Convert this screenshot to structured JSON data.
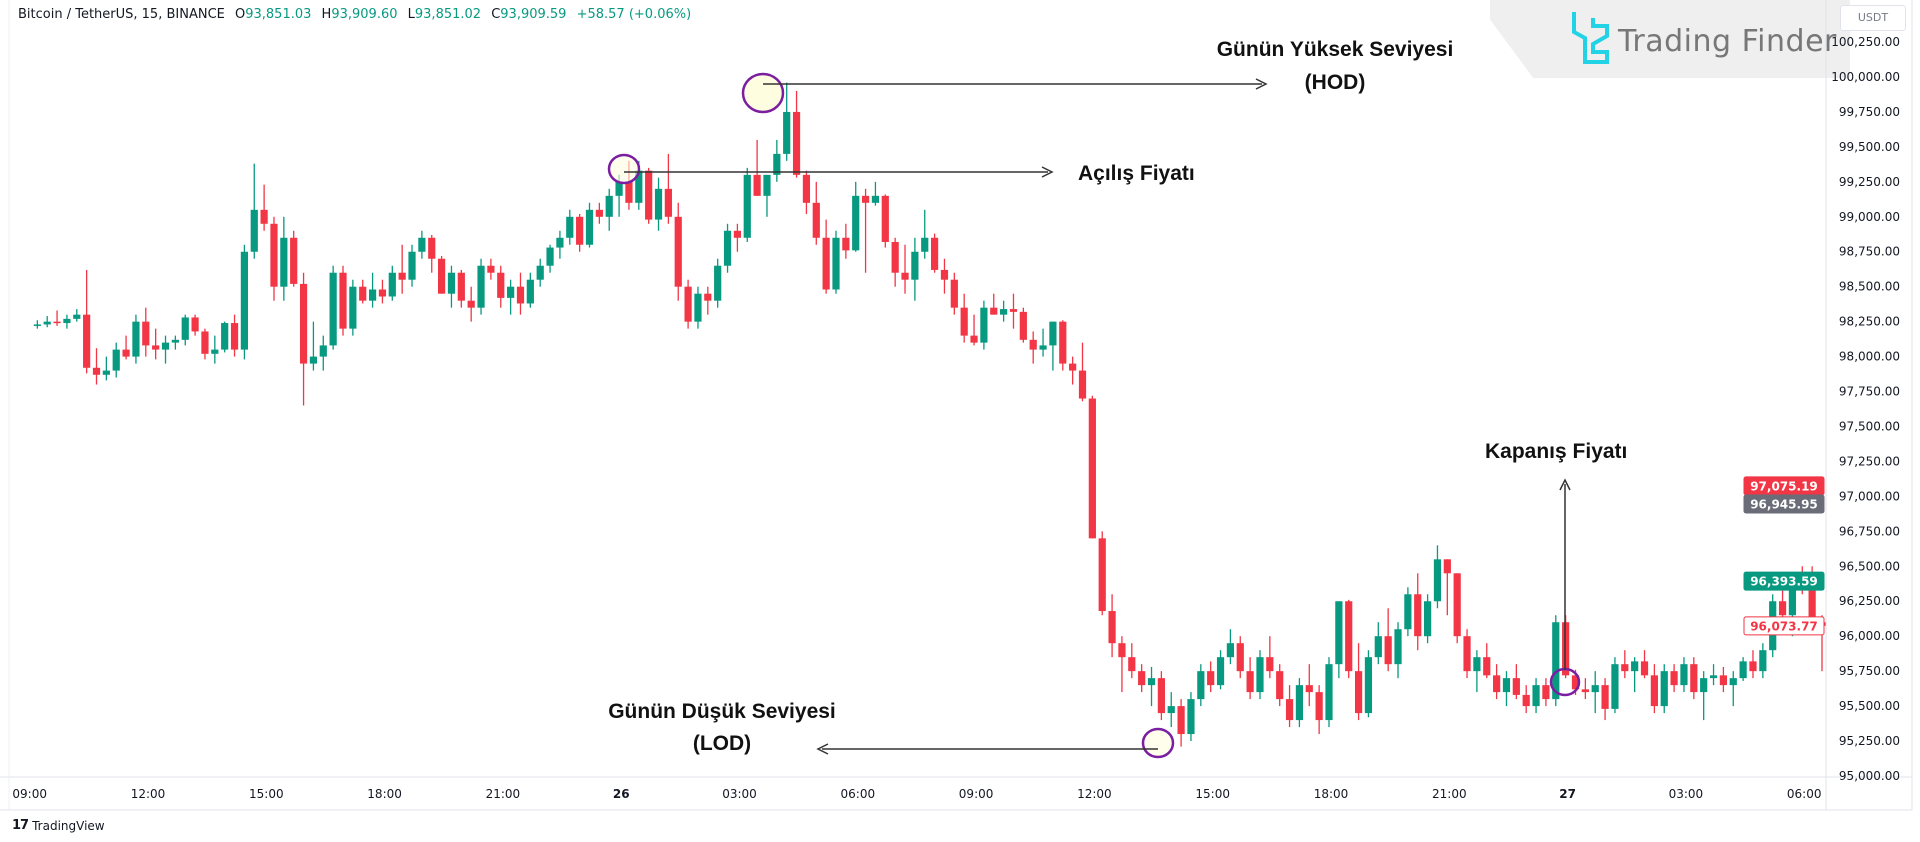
{
  "header": {
    "symbol": "Bitcoin / TetherUS, 15, BINANCE",
    "open_label": "O",
    "open_value": "93,851.03",
    "high_label": "H",
    "high_value": "93,909.60",
    "low_label": "L",
    "low_value": "93,851.02",
    "close_label": "C",
    "close_value": "93,909.59",
    "change": "+58.57 (+0.06%)"
  },
  "watermark": {
    "brand": "Trading Finder",
    "icon": "trading-finder-logo-icon"
  },
  "currency_button": "USDT",
  "footer": {
    "brand": "TradingView",
    "icon": "tradingview-logo-icon"
  },
  "annotations": {
    "hod_line1": "Günün Yüksek Seviyesi",
    "hod_line2": "(HOD)",
    "open_label": "Açılış Fiyatı",
    "close_label": "Kapanış Fiyatı",
    "lod_line1": "Günün Düşük Seviyesi",
    "lod_line2": "(LOD)"
  },
  "colors": {
    "up": "#089981",
    "down": "#f23645",
    "marker": "#7b1fa2",
    "marker_fill": "#fffde0",
    "watermark_icon": "#22d3e6"
  },
  "price_tags": [
    {
      "value": "97,075.19",
      "bg": "#f23645",
      "fg": "#ffffff"
    },
    {
      "value": "96,945.95",
      "bg": "#6a6d78",
      "fg": "#ffffff"
    },
    {
      "value": "96,393.59",
      "bg": "#089981",
      "fg": "#ffffff"
    },
    {
      "value": "96,073.77",
      "bg": "#ffffff",
      "fg": "#f23645"
    }
  ],
  "chart_data": {
    "type": "candlestick",
    "ylim": [
      95000,
      100250
    ],
    "y_ticks": [
      "100,250.00",
      "100,000.00",
      "99,750.00",
      "99,500.00",
      "99,250.00",
      "99,000.00",
      "98,750.00",
      "98,500.00",
      "98,250.00",
      "98,000.00",
      "97,750.00",
      "97,500.00",
      "97,250.00",
      "97,000.00",
      "96,750.00",
      "96,500.00",
      "96,250.00",
      "96,000.00",
      "95,750.00",
      "95,500.00",
      "95,250.00",
      "95,000.00"
    ],
    "x_ticks": [
      "09:00",
      "12:00",
      "15:00",
      "18:00",
      "21:00",
      "26",
      "03:00",
      "06:00",
      "09:00",
      "12:00",
      "15:00",
      "18:00",
      "21:00",
      "27",
      "03:00",
      "06:00"
    ],
    "candles_ohlc": [
      [
        98220,
        98260,
        98200,
        98230
      ],
      [
        98230,
        98290,
        98210,
        98250
      ],
      [
        98250,
        98330,
        98220,
        98240
      ],
      [
        98240,
        98300,
        98200,
        98270
      ],
      [
        98270,
        98340,
        98250,
        98300
      ],
      [
        98300,
        98620,
        97880,
        97920
      ],
      [
        97920,
        98060,
        97800,
        97870
      ],
      [
        97870,
        98000,
        97830,
        97900
      ],
      [
        97900,
        98100,
        97850,
        98050
      ],
      [
        98050,
        98150,
        97980,
        98000
      ],
      [
        98000,
        98300,
        97950,
        98250
      ],
      [
        98250,
        98350,
        98000,
        98080
      ],
      [
        98080,
        98200,
        97980,
        98050
      ],
      [
        98050,
        98150,
        97950,
        98100
      ],
      [
        98100,
        98150,
        98050,
        98120
      ],
      [
        98120,
        98300,
        98080,
        98280
      ],
      [
        98280,
        98300,
        98150,
        98180
      ],
      [
        98180,
        98200,
        97980,
        98020
      ],
      [
        98020,
        98150,
        97950,
        98050
      ],
      [
        98050,
        98250,
        98030,
        98240
      ],
      [
        98240,
        98300,
        98000,
        98050
      ],
      [
        98050,
        98800,
        97980,
        98750
      ],
      [
        98750,
        99380,
        98700,
        99050
      ],
      [
        99050,
        99230,
        98900,
        98950
      ],
      [
        98950,
        99000,
        98400,
        98500
      ],
      [
        98500,
        99000,
        98400,
        98850
      ],
      [
        98850,
        98900,
        98500,
        98520
      ],
      [
        98520,
        98600,
        97650,
        97950
      ],
      [
        97950,
        98250,
        97900,
        98000
      ],
      [
        98000,
        98150,
        97900,
        98080
      ],
      [
        98080,
        98650,
        98050,
        98600
      ],
      [
        98600,
        98650,
        98150,
        98200
      ],
      [
        98200,
        98550,
        98150,
        98500
      ],
      [
        98500,
        98550,
        98380,
        98400
      ],
      [
        98400,
        98600,
        98350,
        98480
      ],
      [
        98480,
        98550,
        98380,
        98430
      ],
      [
        98430,
        98650,
        98400,
        98600
      ],
      [
        98600,
        98800,
        98450,
        98550
      ],
      [
        98550,
        98800,
        98500,
        98750
      ],
      [
        98750,
        98900,
        98700,
        98850
      ],
      [
        98850,
        98870,
        98600,
        98700
      ],
      [
        98700,
        98720,
        98450,
        98450
      ],
      [
        98450,
        98650,
        98350,
        98600
      ],
      [
        98600,
        98620,
        98350,
        98400
      ],
      [
        98400,
        98500,
        98250,
        98350
      ],
      [
        98350,
        98700,
        98300,
        98650
      ],
      [
        98650,
        98700,
        98550,
        98600
      ],
      [
        98600,
        98650,
        98350,
        98420
      ],
      [
        98420,
        98550,
        98300,
        98500
      ],
      [
        98500,
        98600,
        98300,
        98380
      ],
      [
        98380,
        98600,
        98350,
        98550
      ],
      [
        98550,
        98700,
        98500,
        98650
      ],
      [
        98650,
        98800,
        98600,
        98780
      ],
      [
        98780,
        98900,
        98700,
        98850
      ],
      [
        98850,
        99050,
        98800,
        99000
      ],
      [
        99000,
        99020,
        98750,
        98800
      ],
      [
        98800,
        99100,
        98780,
        99050
      ],
      [
        99050,
        99100,
        98950,
        99000
      ],
      [
        99000,
        99200,
        98900,
        99150
      ],
      [
        99150,
        99300,
        99000,
        99250
      ],
      [
        99250,
        99400,
        99050,
        99100
      ],
      [
        99100,
        99400,
        99050,
        99330
      ],
      [
        99330,
        99350,
        98950,
        98980
      ],
      [
        98980,
        99280,
        98900,
        99200
      ],
      [
        99200,
        99450,
        98950,
        99000
      ],
      [
        99000,
        99100,
        98400,
        98500
      ],
      [
        98500,
        98550,
        98200,
        98250
      ],
      [
        98250,
        98500,
        98200,
        98450
      ],
      [
        98450,
        98500,
        98300,
        98400
      ],
      [
        98400,
        98700,
        98350,
        98650
      ],
      [
        98650,
        98950,
        98600,
        98900
      ],
      [
        98900,
        98950,
        98750,
        98850
      ],
      [
        98850,
        99350,
        98820,
        99300
      ],
      [
        99300,
        99550,
        99150,
        99150
      ],
      [
        99150,
        99300,
        99000,
        99300
      ],
      [
        99300,
        99550,
        99250,
        99450
      ],
      [
        99450,
        99960,
        99400,
        99750
      ],
      [
        99750,
        99900,
        99280,
        99300
      ],
      [
        99300,
        99330,
        99020,
        99100
      ],
      [
        99100,
        99250,
        98800,
        98850
      ],
      [
        98850,
        98980,
        98450,
        98480
      ],
      [
        98480,
        98900,
        98450,
        98850
      ],
      [
        98850,
        98950,
        98700,
        98760
      ],
      [
        98760,
        99250,
        98750,
        99150
      ],
      [
        99150,
        99200,
        98600,
        99100
      ],
      [
        99100,
        99250,
        99080,
        99150
      ],
      [
        99150,
        99160,
        98780,
        98820
      ],
      [
        98820,
        98850,
        98500,
        98600
      ],
      [
        98600,
        98800,
        98450,
        98550
      ],
      [
        98550,
        98850,
        98400,
        98750
      ],
      [
        98750,
        99050,
        98700,
        98850
      ],
      [
        98850,
        98880,
        98600,
        98620
      ],
      [
        98620,
        98700,
        98450,
        98550
      ],
      [
        98550,
        98600,
        98300,
        98350
      ],
      [
        98350,
        98450,
        98100,
        98150
      ],
      [
        98150,
        98300,
        98080,
        98100
      ],
      [
        98100,
        98400,
        98050,
        98350
      ],
      [
        98350,
        98450,
        98300,
        98300
      ],
      [
        98300,
        98400,
        98250,
        98340
      ],
      [
        98340,
        98450,
        98200,
        98320
      ],
      [
        98320,
        98350,
        98100,
        98120
      ],
      [
        98120,
        98180,
        97950,
        98050
      ],
      [
        98050,
        98200,
        98000,
        98080
      ],
      [
        98080,
        98250,
        97900,
        98250
      ],
      [
        98250,
        98260,
        97900,
        97950
      ],
      [
        97950,
        98000,
        97800,
        97900
      ],
      [
        97900,
        98100,
        97680,
        97700
      ],
      [
        97700,
        97720,
        96700,
        96700
      ],
      [
        96700,
        96750,
        96150,
        96180
      ],
      [
        96180,
        96300,
        95850,
        95950
      ],
      [
        95950,
        96000,
        95600,
        95850
      ],
      [
        95850,
        95950,
        95700,
        95750
      ],
      [
        95750,
        95800,
        95600,
        95650
      ],
      [
        95650,
        95780,
        95500,
        95700
      ],
      [
        95700,
        95750,
        95400,
        95450
      ],
      [
        95450,
        95600,
        95350,
        95500
      ],
      [
        95500,
        95550,
        95210,
        95300
      ],
      [
        95300,
        95600,
        95250,
        95550
      ],
      [
        95550,
        95800,
        95500,
        95750
      ],
      [
        95750,
        95820,
        95600,
        95650
      ],
      [
        95650,
        95900,
        95620,
        95850
      ],
      [
        95850,
        96050,
        95800,
        95950
      ],
      [
        95950,
        96000,
        95700,
        95750
      ],
      [
        95750,
        95850,
        95550,
        95600
      ],
      [
        95600,
        95900,
        95550,
        95850
      ],
      [
        95850,
        96000,
        95700,
        95750
      ],
      [
        95750,
        95800,
        95500,
        95550
      ],
      [
        95550,
        95650,
        95350,
        95400
      ],
      [
        95400,
        95700,
        95350,
        95650
      ],
      [
        95650,
        95800,
        95500,
        95600
      ],
      [
        95600,
        95650,
        95300,
        95400
      ],
      [
        95400,
        95850,
        95350,
        95800
      ],
      [
        95800,
        96250,
        95700,
        96250
      ],
      [
        96250,
        96260,
        95700,
        95750
      ],
      [
        95750,
        95950,
        95400,
        95450
      ],
      [
        95450,
        95900,
        95420,
        95850
      ],
      [
        95850,
        96100,
        95800,
        96000
      ],
      [
        96000,
        96200,
        95750,
        95800
      ],
      [
        95800,
        96100,
        95700,
        96050
      ],
      [
        96050,
        96350,
        96000,
        96300
      ],
      [
        96300,
        96450,
        95900,
        96000
      ],
      [
        96000,
        96300,
        95950,
        96250
      ],
      [
        96250,
        96650,
        96200,
        96550
      ],
      [
        96550,
        96550,
        96150,
        96450
      ],
      [
        96450,
        96450,
        95950,
        96000
      ],
      [
        96000,
        96050,
        95700,
        95750
      ],
      [
        95750,
        95900,
        95600,
        95850
      ],
      [
        95850,
        95950,
        95700,
        95720
      ],
      [
        95720,
        95800,
        95550,
        95600
      ],
      [
        95600,
        95750,
        95500,
        95700
      ],
      [
        95700,
        95800,
        95550,
        95580
      ],
      [
        95580,
        95650,
        95450,
        95500
      ],
      [
        95500,
        95700,
        95450,
        95650
      ],
      [
        95650,
        95700,
        95500,
        95550
      ],
      [
        95550,
        96150,
        95500,
        96100
      ],
      [
        96100,
        96150,
        95700,
        95720
      ],
      [
        95720,
        95760,
        95580,
        95620
      ],
      [
        95620,
        95700,
        95550,
        95600
      ],
      [
        95600,
        95750,
        95450,
        95650
      ],
      [
        95650,
        95700,
        95400,
        95480
      ],
      [
        95480,
        95850,
        95450,
        95800
      ],
      [
        95800,
        95900,
        95700,
        95750
      ],
      [
        95750,
        95850,
        95600,
        95820
      ],
      [
        95820,
        95900,
        95700,
        95720
      ],
      [
        95720,
        95800,
        95450,
        95500
      ],
      [
        95500,
        95800,
        95450,
        95750
      ],
      [
        95750,
        95800,
        95600,
        95650
      ],
      [
        95650,
        95850,
        95600,
        95800
      ],
      [
        95800,
        95850,
        95550,
        95600
      ],
      [
        95600,
        95750,
        95400,
        95700
      ],
      [
        95700,
        95800,
        95650,
        95720
      ],
      [
        95720,
        95780,
        95600,
        95650
      ],
      [
        95650,
        95750,
        95500,
        95700
      ],
      [
        95700,
        95850,
        95680,
        95820
      ],
      [
        95820,
        95900,
        95700,
        95750
      ],
      [
        95750,
        95950,
        95700,
        95900
      ],
      [
        95900,
        96300,
        95850,
        96250
      ],
      [
        96250,
        96400,
        96100,
        96150
      ],
      [
        96150,
        96450,
        96000,
        96400
      ],
      [
        96400,
        96500,
        96300,
        96390
      ],
      [
        96390,
        96500,
        96050,
        96100
      ],
      [
        96100,
        96150,
        95750,
        96074
      ]
    ],
    "levels": {
      "day_open": 99330,
      "day_high": 99960,
      "day_low": 95210,
      "day_close": 95620
    }
  }
}
